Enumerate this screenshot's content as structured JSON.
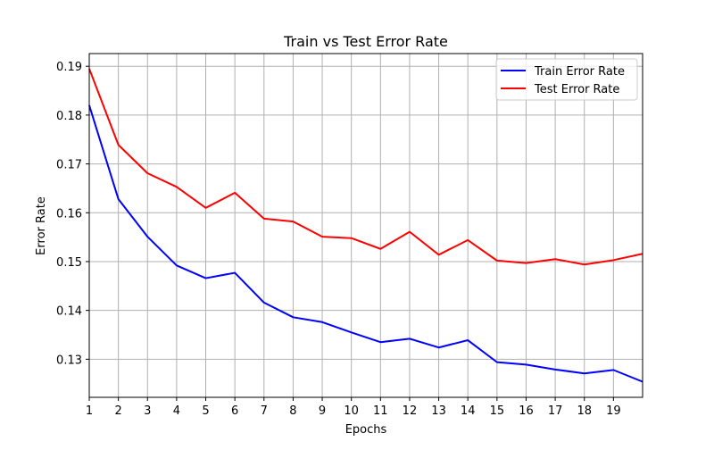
{
  "chart_data": {
    "type": "line",
    "title": "Train vs Test Error Rate",
    "xlabel": "Epochs",
    "ylabel": "Error Rate",
    "x": [
      1,
      2,
      3,
      4,
      5,
      6,
      7,
      8,
      9,
      10,
      11,
      12,
      13,
      14,
      15,
      16,
      17,
      18,
      19,
      20
    ],
    "xticks": [
      1,
      2,
      3,
      4,
      5,
      6,
      7,
      8,
      9,
      10,
      11,
      12,
      13,
      14,
      15,
      16,
      17,
      18,
      19
    ],
    "yticks": [
      0.13,
      0.14,
      0.15,
      0.16,
      0.17,
      0.18,
      0.19
    ],
    "xlim": [
      1,
      20
    ],
    "ylim": [
      0.1222,
      0.1926
    ],
    "grid": true,
    "legend_position": "top-right",
    "series": [
      {
        "name": "Train Error Rate",
        "color": "#0000ff",
        "values": [
          0.182,
          0.1628,
          0.1551,
          0.1492,
          0.1466,
          0.1477,
          0.1416,
          0.1386,
          0.1376,
          0.1355,
          0.1335,
          0.1342,
          0.1324,
          0.1339,
          0.1294,
          0.1289,
          0.1279,
          0.1271,
          0.1278,
          0.1254
        ]
      },
      {
        "name": "Test Error Rate",
        "color": "#ff0000",
        "values": [
          0.1895,
          0.1739,
          0.1681,
          0.1653,
          0.161,
          0.1641,
          0.1588,
          0.1582,
          0.1551,
          0.1548,
          0.1526,
          0.1561,
          0.1514,
          0.1544,
          0.1502,
          0.1497,
          0.1505,
          0.1494,
          0.1503,
          0.1516
        ]
      }
    ]
  }
}
